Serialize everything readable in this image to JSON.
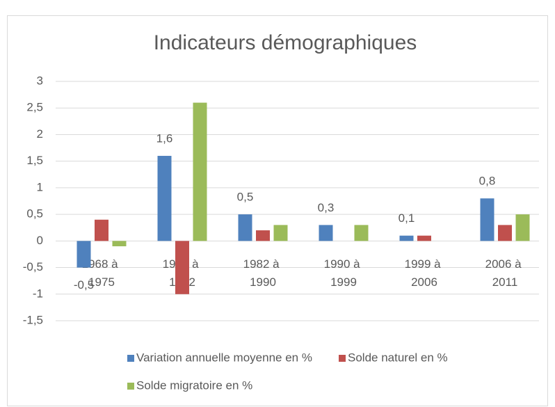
{
  "chart_data": {
    "type": "bar",
    "title": "Indicateurs démographiques",
    "categories": [
      "1968 à 1975",
      "1975 à 1982",
      "1982 à 1990",
      "1990 à 1999",
      "1999 à 2006",
      "2006 à 2011"
    ],
    "series": [
      {
        "name": "Variation annuelle moyenne en %",
        "color": "#4f81bd",
        "values": [
          -0.5,
          1.6,
          0.5,
          0.3,
          0.1,
          0.8
        ],
        "value_labels": [
          "-0,5",
          "1,6",
          "0,5",
          "0,3",
          "0,1",
          "0,8"
        ]
      },
      {
        "name": "Solde naturel en %",
        "color": "#c0504d",
        "values": [
          0.4,
          -1.0,
          0.2,
          0,
          0.1,
          0.3
        ]
      },
      {
        "name": "Solde migratoire en %",
        "color": "#9bbb59",
        "values": [
          -0.1,
          2.6,
          0.3,
          0.3,
          0,
          0.5
        ]
      }
    ],
    "ylim": [
      -1.5,
      3
    ],
    "yticks": [
      {
        "value": -1.5,
        "label": "-1,5"
      },
      -1,
      {
        "value": -0.5,
        "label": "-0,5"
      },
      0,
      {
        "value": 0.5,
        "label": "0,5"
      },
      1,
      {
        "value": 1.5,
        "label": "1,5"
      },
      2,
      {
        "value": 2.5,
        "label": "2,5"
      },
      3
    ],
    "grid": true,
    "legend": "bottom"
  }
}
